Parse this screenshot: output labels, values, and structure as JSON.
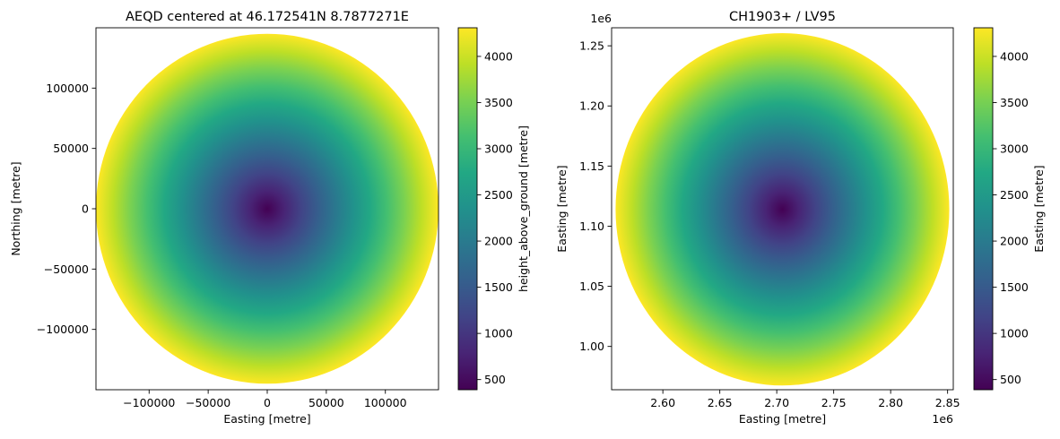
{
  "chart_data": [
    {
      "type": "heatmap",
      "title": "AEQD centered at 46.172541N 8.7877271E",
      "xlabel": "Easting [metre]",
      "ylabel": "Northing [metre]",
      "colorbar_label": "height_above_ground [metre]",
      "colormap": "viridis",
      "xlim": [
        -145000,
        145000
      ],
      "ylim": [
        -150000,
        150000
      ],
      "center": [
        0,
        0
      ],
      "radius": 145000,
      "x_ticks": [
        {
          "value": -100000,
          "label": "−100000"
        },
        {
          "value": -50000,
          "label": "−50000"
        },
        {
          "value": 0,
          "label": "0"
        },
        {
          "value": 50000,
          "label": "50000"
        },
        {
          "value": 100000,
          "label": "100000"
        }
      ],
      "y_ticks": [
        {
          "value": 100000,
          "label": "100000"
        },
        {
          "value": 50000,
          "label": "50000"
        },
        {
          "value": 0,
          "label": "0"
        },
        {
          "value": -50000,
          "label": "−50000"
        },
        {
          "value": -100000,
          "label": "−100000"
        }
      ],
      "x_offset_label": "",
      "y_offset_label": "",
      "colorbar_range": [
        390,
        4310
      ],
      "colorbar_ticks": [
        {
          "value": 500,
          "label": "500"
        },
        {
          "value": 1000,
          "label": "1000"
        },
        {
          "value": 1500,
          "label": "1500"
        },
        {
          "value": 2000,
          "label": "2000"
        },
        {
          "value": 2500,
          "label": "2500"
        },
        {
          "value": 3000,
          "label": "3000"
        },
        {
          "value": 3500,
          "label": "3500"
        },
        {
          "value": 4000,
          "label": "4000"
        }
      ]
    },
    {
      "type": "heatmap",
      "title": "CH1903+ / LV95",
      "xlabel": "Easting [metre]",
      "ylabel": "Easting [metre]",
      "colorbar_label": "Easting [metre]",
      "colormap": "viridis",
      "xlim": [
        2.555,
        2.855
      ],
      "ylim": [
        0.964,
        1.265
      ],
      "center": [
        2.705,
        1.114
      ],
      "radius": 0.1465,
      "x_ticks": [
        {
          "value": 2.6,
          "label": "2.60"
        },
        {
          "value": 2.65,
          "label": "2.65"
        },
        {
          "value": 2.7,
          "label": "2.70"
        },
        {
          "value": 2.75,
          "label": "2.75"
        },
        {
          "value": 2.8,
          "label": "2.80"
        },
        {
          "value": 2.85,
          "label": "2.85"
        }
      ],
      "y_ticks": [
        {
          "value": 1.25,
          "label": "1.25"
        },
        {
          "value": 1.2,
          "label": "1.20"
        },
        {
          "value": 1.15,
          "label": "1.15"
        },
        {
          "value": 1.1,
          "label": "1.10"
        },
        {
          "value": 1.05,
          "label": "1.05"
        },
        {
          "value": 1.0,
          "label": "1.00"
        }
      ],
      "x_offset_label": "1e6",
      "y_offset_label": "1e6",
      "colorbar_range": [
        390,
        4310
      ],
      "colorbar_ticks": [
        {
          "value": 500,
          "label": "500"
        },
        {
          "value": 1000,
          "label": "1000"
        },
        {
          "value": 1500,
          "label": "1500"
        },
        {
          "value": 2000,
          "label": "2000"
        },
        {
          "value": 2500,
          "label": "2500"
        },
        {
          "value": 3000,
          "label": "3000"
        },
        {
          "value": 3500,
          "label": "3500"
        },
        {
          "value": 4000,
          "label": "4000"
        }
      ]
    }
  ]
}
